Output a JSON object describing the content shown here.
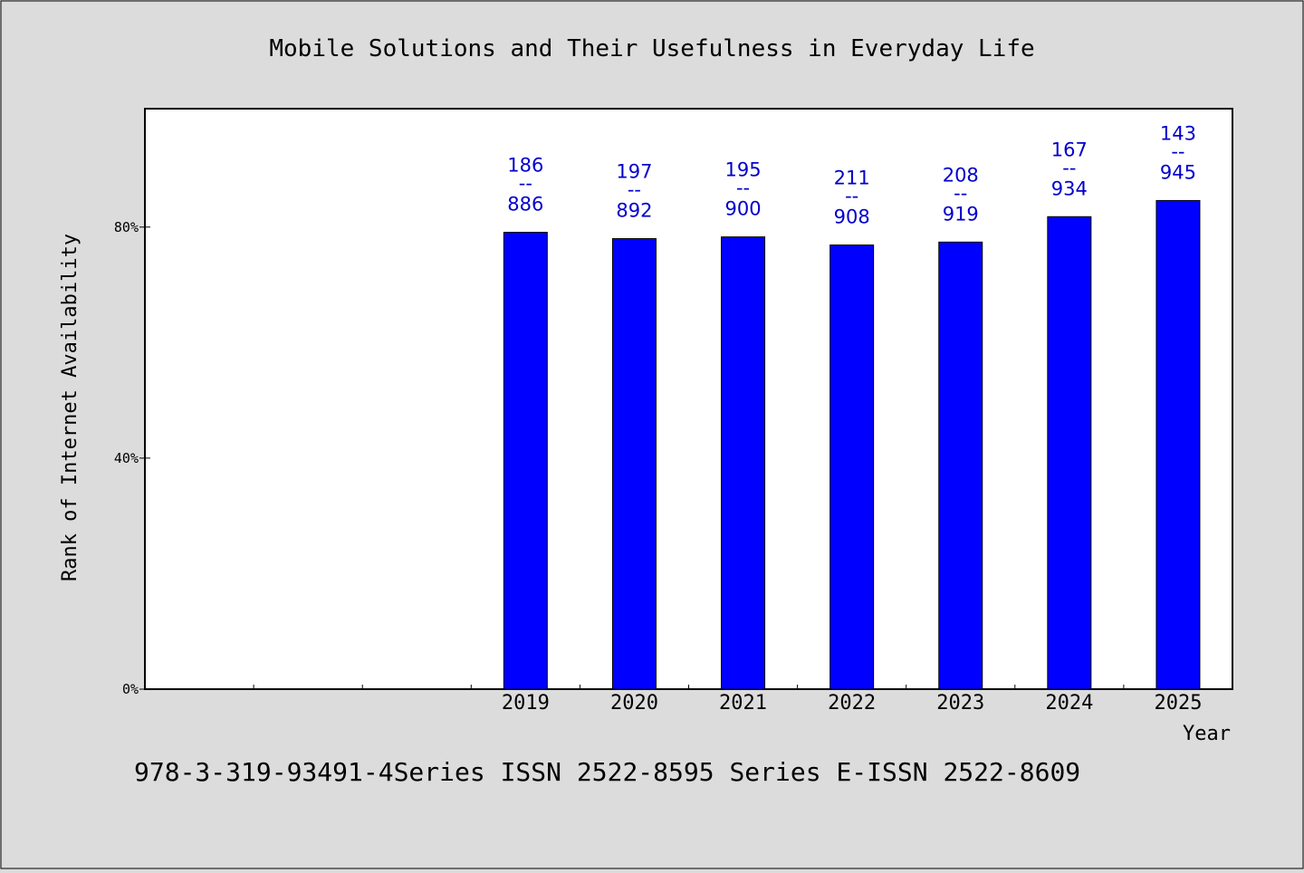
{
  "chart_data": {
    "type": "bar",
    "title": "Mobile Solutions and Their Usefulness in Everyday Life",
    "xlabel": "Year",
    "ylabel": "Rank of Internet Availability",
    "categories": [
      "",
      "",
      "",
      "2019",
      "2020",
      "2021",
      "2022",
      "2023",
      "2024",
      "2025"
    ],
    "values": [
      null,
      null,
      null,
      79.1,
      78.0,
      78.3,
      76.9,
      77.4,
      81.8,
      84.6
    ],
    "data_labels": [
      null,
      null,
      null,
      {
        "top": "186",
        "sep": "--",
        "bottom": "886"
      },
      {
        "top": "197",
        "sep": "--",
        "bottom": "892"
      },
      {
        "top": "195",
        "sep": "--",
        "bottom": "900"
      },
      {
        "top": "211",
        "sep": "--",
        "bottom": "908"
      },
      {
        "top": "208",
        "sep": "--",
        "bottom": "919"
      },
      {
        "top": "167",
        "sep": "--",
        "bottom": "934"
      },
      {
        "top": "143",
        "sep": "--",
        "bottom": "945"
      }
    ],
    "yticks": [
      0,
      40,
      80
    ],
    "ytick_labels": [
      "0%",
      "40%",
      "80%"
    ],
    "ylim": [
      0,
      100.5
    ],
    "grid": false,
    "bar_color": "#0000ff",
    "label_color": "#0000cc"
  },
  "footer": {
    "text": "978-3-319-93491-4Series ISSN 2522-8595 Series E-ISSN 2522-8609"
  }
}
